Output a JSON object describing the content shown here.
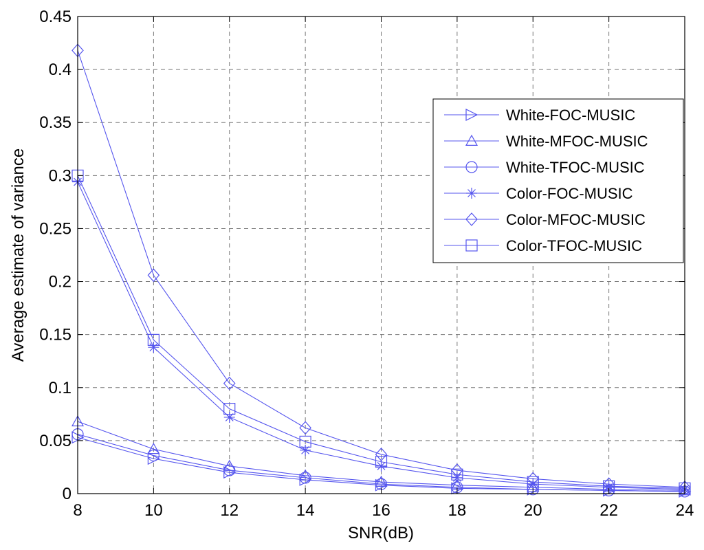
{
  "chart_data": {
    "type": "line",
    "title": "",
    "xlabel": "SNR(dB)",
    "ylabel": "Average estimate of variance",
    "xlim": [
      8,
      24
    ],
    "ylim": [
      0,
      0.45
    ],
    "grid": true,
    "legend_position": "top-right",
    "line_color": "#5555ee",
    "x": [
      8,
      10,
      12,
      14,
      16,
      18,
      20,
      22,
      24
    ],
    "x_ticks": [
      "8",
      "10",
      "12",
      "14",
      "16",
      "18",
      "20",
      "22",
      "24"
    ],
    "y_ticks": [
      "0",
      "0.05",
      "0.1",
      "0.15",
      "0.2",
      "0.25",
      "0.3",
      "0.35",
      "0.4",
      "0.45"
    ],
    "series": [
      {
        "name": "White-FOC-MUSIC",
        "marker": "triangle-right",
        "values": [
          0.053,
          0.033,
          0.02,
          0.013,
          0.008,
          0.005,
          0.004,
          0.003,
          0.002
        ]
      },
      {
        "name": "White-MFOC-MUSIC",
        "marker": "triangle-up",
        "values": [
          0.068,
          0.042,
          0.026,
          0.017,
          0.011,
          0.008,
          0.006,
          0.004,
          0.003
        ]
      },
      {
        "name": "White-TFOC-MUSIC",
        "marker": "circle",
        "values": [
          0.056,
          0.036,
          0.022,
          0.015,
          0.009,
          0.006,
          0.004,
          0.003,
          0.002
        ]
      },
      {
        "name": "Color-FOC-MUSIC",
        "marker": "star",
        "values": [
          0.294,
          0.138,
          0.072,
          0.041,
          0.026,
          0.015,
          0.009,
          0.006,
          0.004
        ]
      },
      {
        "name": "Color-MFOC-MUSIC",
        "marker": "diamond",
        "values": [
          0.418,
          0.206,
          0.104,
          0.062,
          0.037,
          0.022,
          0.014,
          0.009,
          0.006
        ]
      },
      {
        "name": "Color-TFOC-MUSIC",
        "marker": "square",
        "values": [
          0.3,
          0.145,
          0.08,
          0.049,
          0.03,
          0.018,
          0.011,
          0.007,
          0.005
        ]
      }
    ]
  }
}
